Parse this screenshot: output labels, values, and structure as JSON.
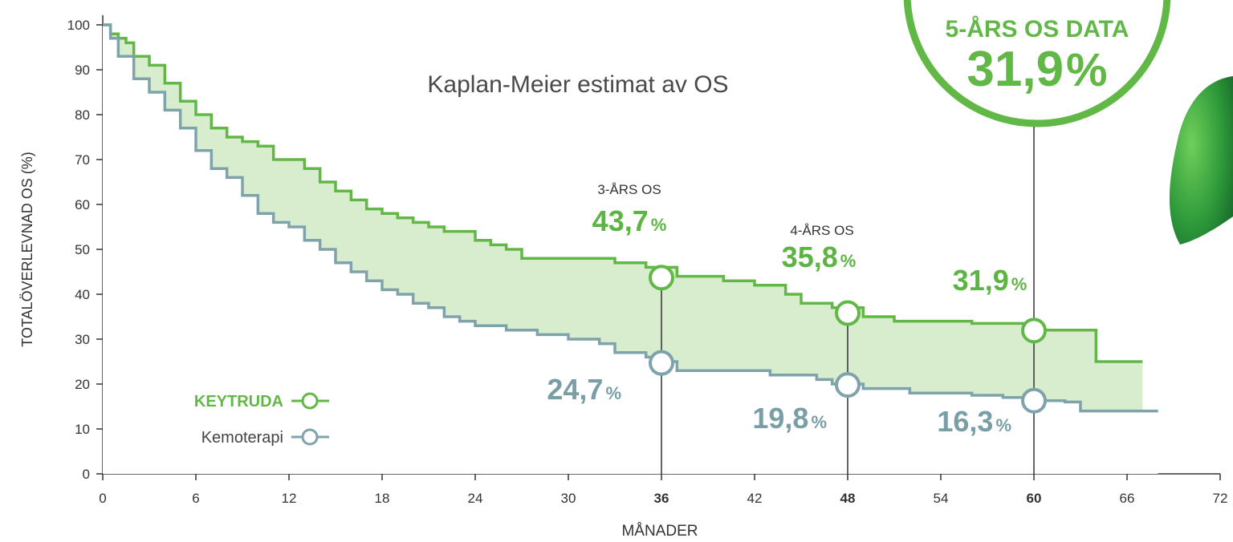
{
  "chart_data": {
    "type": "step",
    "title": "Kaplan-Meier estimat av OS",
    "x_label": "MÅNADER",
    "y_label": "TOTALÖVERLEVNAD OS (%)",
    "xlim": [
      0,
      72
    ],
    "ylim": [
      0,
      100
    ],
    "xticks": [
      0,
      6,
      12,
      18,
      24,
      30,
      36,
      42,
      48,
      54,
      60,
      66,
      72
    ],
    "yticks": [
      0,
      10,
      20,
      30,
      40,
      50,
      60,
      70,
      80,
      90,
      100
    ],
    "legend": "lower left",
    "fill_between_color": "#d8ecce",
    "series": [
      {
        "name": "KEYTRUDA",
        "color": "#62b846",
        "x": [
          0,
          0.5,
          1,
          1.5,
          2,
          3,
          4,
          5,
          6,
          7,
          8,
          9,
          10,
          11,
          13,
          14,
          15,
          16,
          17,
          18,
          19,
          20,
          21,
          22,
          24,
          25,
          26,
          27,
          33,
          35,
          37,
          40,
          42,
          44,
          45,
          47,
          49,
          51,
          56,
          60,
          64,
          67
        ],
        "values": [
          100,
          98,
          97,
          96,
          93,
          91,
          87,
          83,
          80,
          77,
          75,
          74,
          73,
          70,
          68,
          65,
          63,
          61,
          59,
          58,
          57,
          56,
          55,
          54,
          52,
          51,
          50,
          48,
          47,
          46,
          44,
          43,
          42,
          40,
          38,
          37,
          35,
          34,
          33.5,
          32,
          25,
          25
        ]
      },
      {
        "name": "Kemoterapi",
        "color": "#7fa3ab",
        "x": [
          0,
          0.5,
          1,
          2,
          3,
          4,
          5,
          6,
          7,
          8,
          9,
          10,
          11,
          12,
          13,
          14,
          15,
          16,
          17,
          18,
          19,
          20,
          21,
          22,
          23,
          24,
          26,
          28,
          30,
          32,
          33,
          35,
          36,
          37,
          43,
          46,
          47,
          49,
          52,
          56,
          58,
          60,
          62,
          63,
          68
        ],
        "values": [
          100,
          97,
          93,
          88,
          85,
          81,
          77,
          72,
          68,
          66,
          62,
          58,
          56,
          55,
          52,
          50,
          47,
          45,
          43,
          41,
          40,
          38,
          37,
          35,
          34,
          33,
          32,
          31,
          30,
          29,
          27,
          26,
          25,
          23,
          22,
          21,
          20,
          19,
          18,
          17.5,
          17,
          16.3,
          16,
          14,
          14
        ]
      }
    ],
    "milestones": [
      {
        "x": 36,
        "label": "3-ÅRS OS",
        "values": [
          43.7,
          24.7
        ],
        "value_labels": [
          "43,7%",
          "24,7%"
        ]
      },
      {
        "x": 48,
        "label": "4-ÅRS OS",
        "values": [
          35.8,
          19.8
        ],
        "value_labels": [
          "35,8%",
          "19,8%"
        ]
      },
      {
        "x": 60,
        "values": [
          31.9,
          16.3
        ],
        "value_labels": [
          "31,9%",
          "16,3%"
        ]
      }
    ],
    "badge": {
      "title": "5-ÅRS OS DATA",
      "value": 31.9,
      "value_label": "31,9%"
    }
  }
}
